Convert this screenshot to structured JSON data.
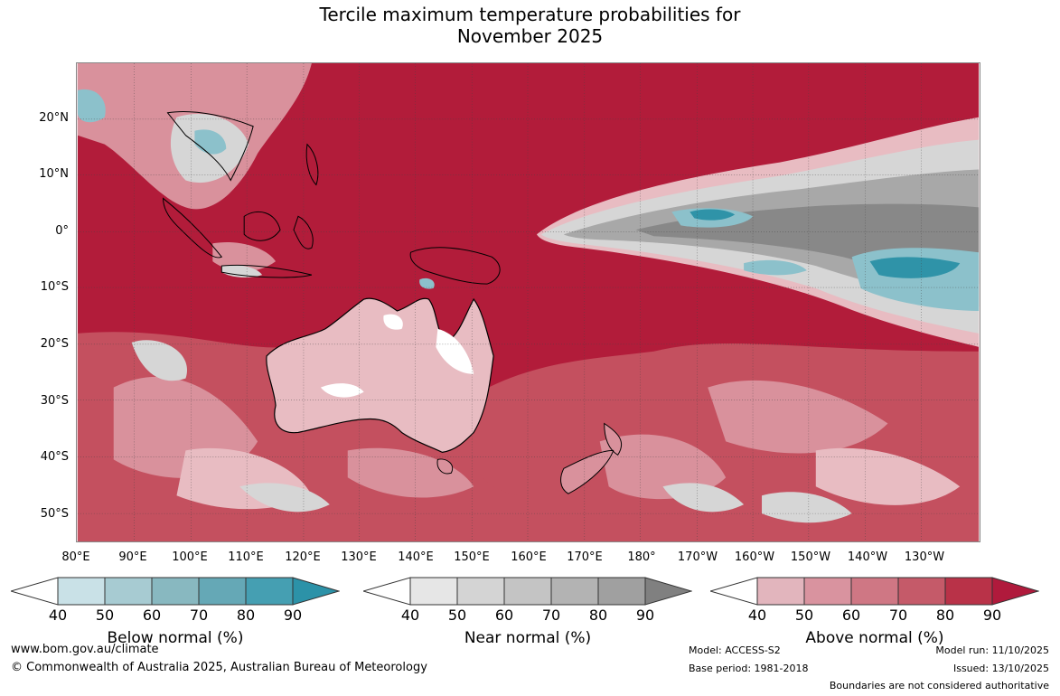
{
  "title_line1": "Tercile maximum temperature probabilities for",
  "title_line2": "November 2025",
  "lat_labels": [
    "20°N",
    "10°N",
    "0°",
    "10°S",
    "20°S",
    "30°S",
    "40°S",
    "50°S"
  ],
  "lon_labels": [
    "80°E",
    "90°E",
    "100°E",
    "110°E",
    "120°E",
    "130°E",
    "140°E",
    "150°E",
    "160°E",
    "170°E",
    "180°",
    "170°W",
    "160°W",
    "150°W",
    "140°W",
    "130°W"
  ],
  "legends": [
    {
      "title": "Below normal (%)",
      "ticks": [
        "40",
        "50",
        "60",
        "70",
        "80",
        "90"
      ],
      "colors": [
        "#ffffff",
        "#c9e1e7",
        "#a7cbd2",
        "#88b8c0",
        "#65a8b6",
        "#459fb2",
        "#2c92a8"
      ]
    },
    {
      "title": "Near normal (%)",
      "ticks": [
        "40",
        "50",
        "60",
        "70",
        "80",
        "90"
      ],
      "colors": [
        "#ffffff",
        "#e6e6e6",
        "#d4d4d4",
        "#c4c4c4",
        "#b3b3b3",
        "#a0a0a0",
        "#808080"
      ]
    },
    {
      "title": "Above normal (%)",
      "ticks": [
        "40",
        "50",
        "60",
        "70",
        "80",
        "90"
      ],
      "colors": [
        "#ffffff",
        "#e2b5bd",
        "#d9939f",
        "#cf7784",
        "#c55a69",
        "#b93248",
        "#b01a3c"
      ]
    }
  ],
  "map_colors": {
    "ocean_hot": "#b21c3a",
    "hot2": "#c4505f",
    "hot3": "#d9919c",
    "hot4": "#e8bcc2",
    "near1": "#d6d6d6",
    "near2": "#a8a8a8",
    "near3": "#888888",
    "below1": "#8cc1cb",
    "below2": "#2f93a8",
    "land_line": "#000000"
  },
  "footer": {
    "website": "www.bom.gov.au/climate",
    "copyright": "© Commonwealth of Australia 2025, Australian Bureau of Meteorology",
    "model": "Model: ACCESS-S2",
    "base_period": "Base period: 1981-2018",
    "model_run": "Model run: 11/10/2025",
    "issued": "Issued: 13/10/2025",
    "boundaries": "Boundaries are not considered authoritative"
  }
}
